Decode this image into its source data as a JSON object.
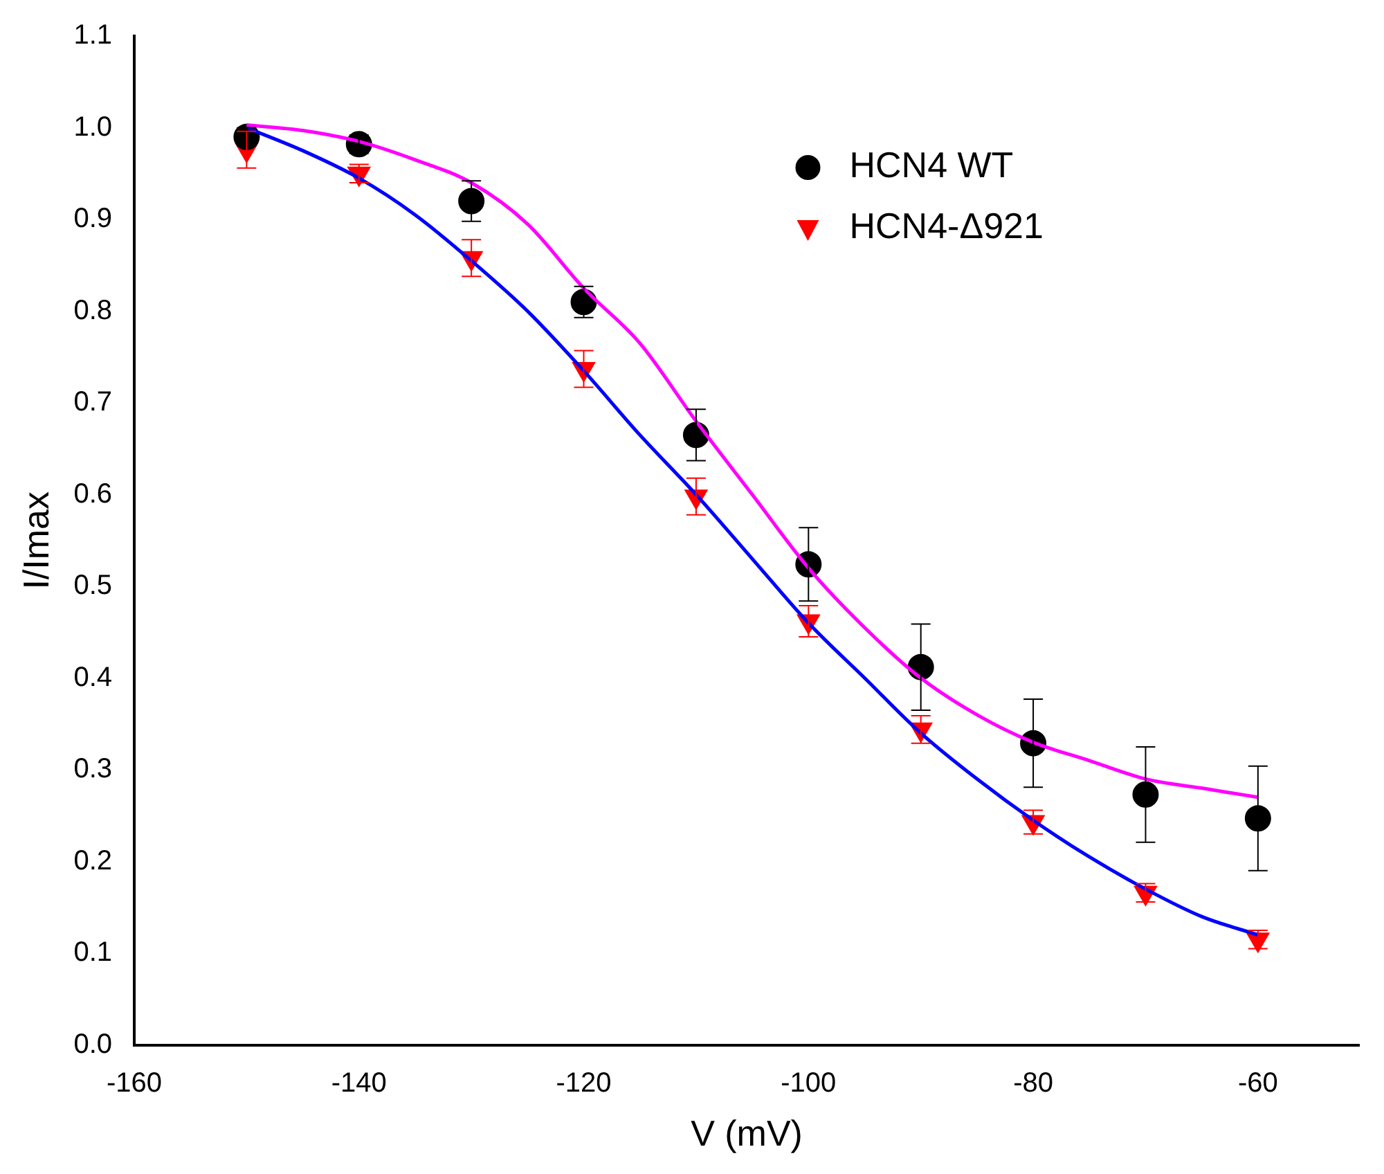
{
  "chart_data": {
    "type": "scatter",
    "xlabel": "V (mV)",
    "ylabel": "I/Imax",
    "xlim": [
      -160,
      -51
    ],
    "xticks": [
      -160,
      -140,
      -120,
      -100,
      -80,
      -60
    ],
    "ylim": [
      0,
      1.1
    ],
    "yticks": [
      {
        "value": 0,
        "label": "0.0"
      },
      0.1,
      0.2,
      0.3,
      0.4,
      0.5,
      0.6,
      0.7,
      0.8,
      0.9,
      {
        "value": 1,
        "label": "1.0"
      },
      1.1
    ],
    "grid": false,
    "legend": "top right",
    "series": [
      {
        "type": "line",
        "color": "#ff00ff",
        "marker": "none",
        "x": [
          -150,
          -145,
          -140,
          -135,
          -130,
          -125,
          -120,
          -115,
          -110,
          -105,
          -100,
          -95,
          -90,
          -85,
          -80,
          -75,
          -70,
          -65,
          -60
        ],
        "values": [
          1.003,
          0.997,
          0.985,
          0.965,
          0.94,
          0.895,
          0.825,
          0.765,
          0.68,
          0.6,
          0.52,
          0.455,
          0.4,
          0.36,
          0.33,
          0.31,
          0.29,
          0.28,
          0.27
        ]
      },
      {
        "type": "line",
        "color": "#0000ff",
        "marker": "none",
        "x": [
          -150,
          -145,
          -140,
          -135,
          -130,
          -125,
          -120,
          -115,
          -110,
          -105,
          -100,
          -95,
          -90,
          -85,
          -80,
          -75,
          -70,
          -65,
          -60
        ],
        "values": [
          1.0,
          0.975,
          0.945,
          0.905,
          0.855,
          0.8,
          0.735,
          0.665,
          0.6,
          0.53,
          0.46,
          0.4,
          0.34,
          0.29,
          0.245,
          0.205,
          0.17,
          0.14,
          0.12
        ]
      },
      {
        "name": "HCN4 WT",
        "color": "#000000",
        "marker": "circle",
        "x": [
          -150,
          -140,
          -130,
          -120,
          -110,
          -100,
          -90,
          -80,
          -70,
          -60
        ],
        "values": [
          0.99,
          0.982,
          0.92,
          0.81,
          0.665,
          0.524,
          0.412,
          0.329,
          0.273,
          0.247
        ],
        "errors": [
          0.01,
          0.01,
          0.022,
          0.017,
          0.028,
          0.04,
          0.047,
          0.048,
          0.052,
          0.057
        ]
      },
      {
        "name": "HCN4-Δ921",
        "color": "#ff0000",
        "marker": "triangle",
        "x": [
          -150,
          -140,
          -130,
          -120,
          -110,
          -100,
          -90,
          -80,
          -70,
          -60
        ],
        "values": [
          0.976,
          0.95,
          0.858,
          0.737,
          0.598,
          0.462,
          0.344,
          0.243,
          0.166,
          0.115
        ],
        "errors": [
          0.02,
          0.01,
          0.02,
          0.02,
          0.02,
          0.017,
          0.015,
          0.013,
          0.01,
          0.01
        ]
      }
    ]
  }
}
